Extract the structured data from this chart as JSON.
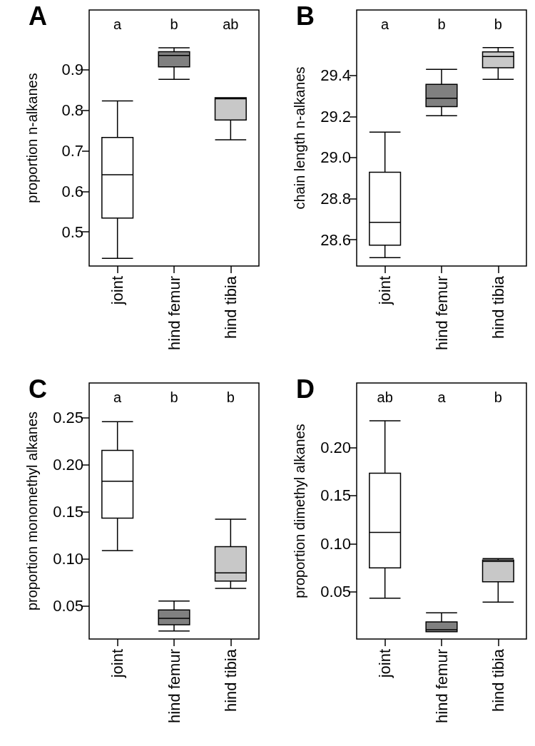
{
  "chart_data": [
    {
      "type": "box",
      "title": "A",
      "ylabel": "proportion n-alkanes",
      "categories": [
        "joint",
        "hind femur",
        "hind tibia"
      ],
      "colors": [
        "#ffffff",
        "#808080",
        "#c8c8c8"
      ],
      "boxes": [
        {
          "low": 0.435,
          "q1": 0.534,
          "median": 0.641,
          "q3": 0.733,
          "high": 0.823
        },
        {
          "low": 0.876,
          "q1": 0.907,
          "median": 0.935,
          "q3": 0.944,
          "high": 0.954
        },
        {
          "low": 0.727,
          "q1": 0.776,
          "median": 0.828,
          "q3": 0.831,
          "high": 0.831
        }
      ],
      "ylim": [
        0.416,
        1.047
      ],
      "yticks": [
        0.5,
        0.6,
        0.7,
        0.8,
        0.9
      ],
      "grid": false,
      "annotations": [
        "a",
        "b",
        "ab"
      ]
    },
    {
      "type": "box",
      "title": "B",
      "ylabel": "chain length n-alkanes",
      "categories": [
        "joint",
        "hind femur",
        "hind tibia"
      ],
      "colors": [
        "#ffffff",
        "#808080",
        "#c8c8c8"
      ],
      "boxes": [
        {
          "low": 28.513,
          "q1": 28.574,
          "median": 28.685,
          "q3": 28.929,
          "high": 29.124
        },
        {
          "low": 29.204,
          "q1": 29.248,
          "median": 29.289,
          "q3": 29.357,
          "high": 29.43
        },
        {
          "low": 29.381,
          "q1": 29.438,
          "median": 29.492,
          "q3": 29.515,
          "high": 29.536
        }
      ],
      "ylim": [
        28.472,
        29.719
      ],
      "yticks": [
        {
          "value": 28.6,
          "label": "28.6"
        },
        {
          "value": 28.8,
          "label": "28.8"
        },
        {
          "value": 29.0,
          "label": "29.0"
        },
        {
          "value": 29.2,
          "label": "29.2"
        },
        {
          "value": 29.4,
          "label": "29.4"
        }
      ],
      "grid": false,
      "annotations": [
        "a",
        "b",
        "b"
      ]
    },
    {
      "type": "box",
      "title": "C",
      "ylabel": "proportion monomethyl alkanes",
      "categories": [
        "joint",
        "hind femur",
        "hind tibia"
      ],
      "colors": [
        "#ffffff",
        "#808080",
        "#c8c8c8"
      ],
      "boxes": [
        {
          "low": 0.1087,
          "q1": 0.1433,
          "median": 0.1825,
          "q3": 0.2151,
          "high": 0.2457
        },
        {
          "low": 0.0235,
          "q1": 0.03,
          "median": 0.0369,
          "q3": 0.0457,
          "high": 0.0553
        },
        {
          "low": 0.0687,
          "q1": 0.0765,
          "median": 0.0851,
          "q3": 0.113,
          "high": 0.142
        }
      ],
      "ylim": [
        0.0149,
        0.2867
      ],
      "yticks": [
        {
          "value": 0.05,
          "label": "0.05"
        },
        {
          "value": 0.1,
          "label": "0.10"
        },
        {
          "value": 0.15,
          "label": "0.15"
        },
        {
          "value": 0.2,
          "label": "0.20"
        },
        {
          "value": 0.25,
          "label": "0.25"
        }
      ],
      "grid": false,
      "annotations": [
        "a",
        "b",
        "b"
      ]
    },
    {
      "type": "box",
      "title": "D",
      "ylabel": "proportion dimethyl alkanes",
      "categories": [
        "joint",
        "hind femur",
        "hind tibia"
      ],
      "colors": [
        "#ffffff",
        "#808080",
        "#c8c8c8"
      ],
      "boxes": [
        {
          "low": 0.0433,
          "q1": 0.0748,
          "median": 0.1117,
          "q3": 0.1732,
          "high": 0.2278
        },
        {
          "low": 0.0085,
          "q1": 0.0085,
          "median": 0.0105,
          "q3": 0.0187,
          "high": 0.0282
        },
        {
          "low": 0.0393,
          "q1": 0.0604,
          "median": 0.0815,
          "q3": 0.083,
          "high": 0.0845
        }
      ],
      "ylim": [
        0.0009,
        0.267
      ],
      "yticks": [
        {
          "value": 0.05,
          "label": "0.05"
        },
        {
          "value": 0.1,
          "label": "0.10"
        },
        {
          "value": 0.15,
          "label": "0.15"
        },
        {
          "value": 0.2,
          "label": "0.20"
        }
      ],
      "grid": false,
      "annotations": [
        "ab",
        "a",
        "b"
      ]
    }
  ]
}
